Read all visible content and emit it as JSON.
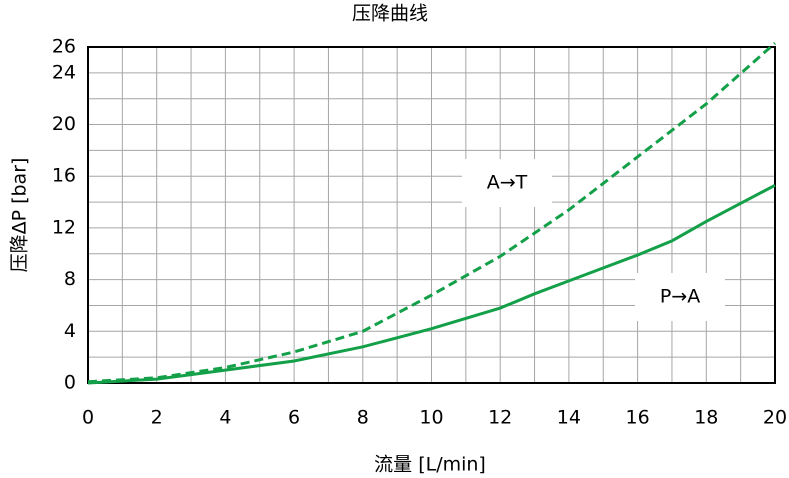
{
  "chart_data": {
    "type": "line",
    "title": "压降曲线",
    "x_label": "流量 [L/min]",
    "y_label": "压降ΔP [bar]",
    "xlim": [
      0,
      20
    ],
    "ylim": [
      0,
      26
    ],
    "xticks": [
      0,
      2,
      4,
      6,
      8,
      10,
      12,
      14,
      16,
      18,
      20
    ],
    "yticks": [
      0,
      4,
      8,
      12,
      16,
      20,
      24,
      26
    ],
    "xgrid": [
      0,
      1,
      2,
      3,
      4,
      5,
      6,
      7,
      8,
      9,
      10,
      11,
      12,
      13,
      14,
      15,
      16,
      17,
      18,
      19,
      20
    ],
    "ygrid": [
      0,
      2,
      4,
      6,
      8,
      10,
      12,
      14,
      16,
      18,
      20,
      22,
      24,
      26
    ],
    "grid": true,
    "series": [
      {
        "name": "P→A",
        "color": "#13a049",
        "dashed": false,
        "x": [
          0,
          2,
          4,
          6,
          8,
          10,
          12,
          13,
          14,
          16,
          17,
          18,
          20
        ],
        "values": [
          0,
          0.3,
          1,
          1.7,
          2.8,
          4.2,
          5.8,
          6.9,
          7.9,
          9.9,
          11,
          12.5,
          15.3
        ]
      },
      {
        "name": "A→T",
        "color": "#13a049",
        "dashed": true,
        "x": [
          0,
          2,
          4,
          6,
          8,
          9,
          10,
          12,
          14,
          16,
          18,
          20
        ],
        "values": [
          0.1,
          0.4,
          1.2,
          2.4,
          4,
          5.4,
          6.8,
          9.8,
          13.4,
          17.5,
          21.6,
          26.3
        ]
      }
    ]
  }
}
